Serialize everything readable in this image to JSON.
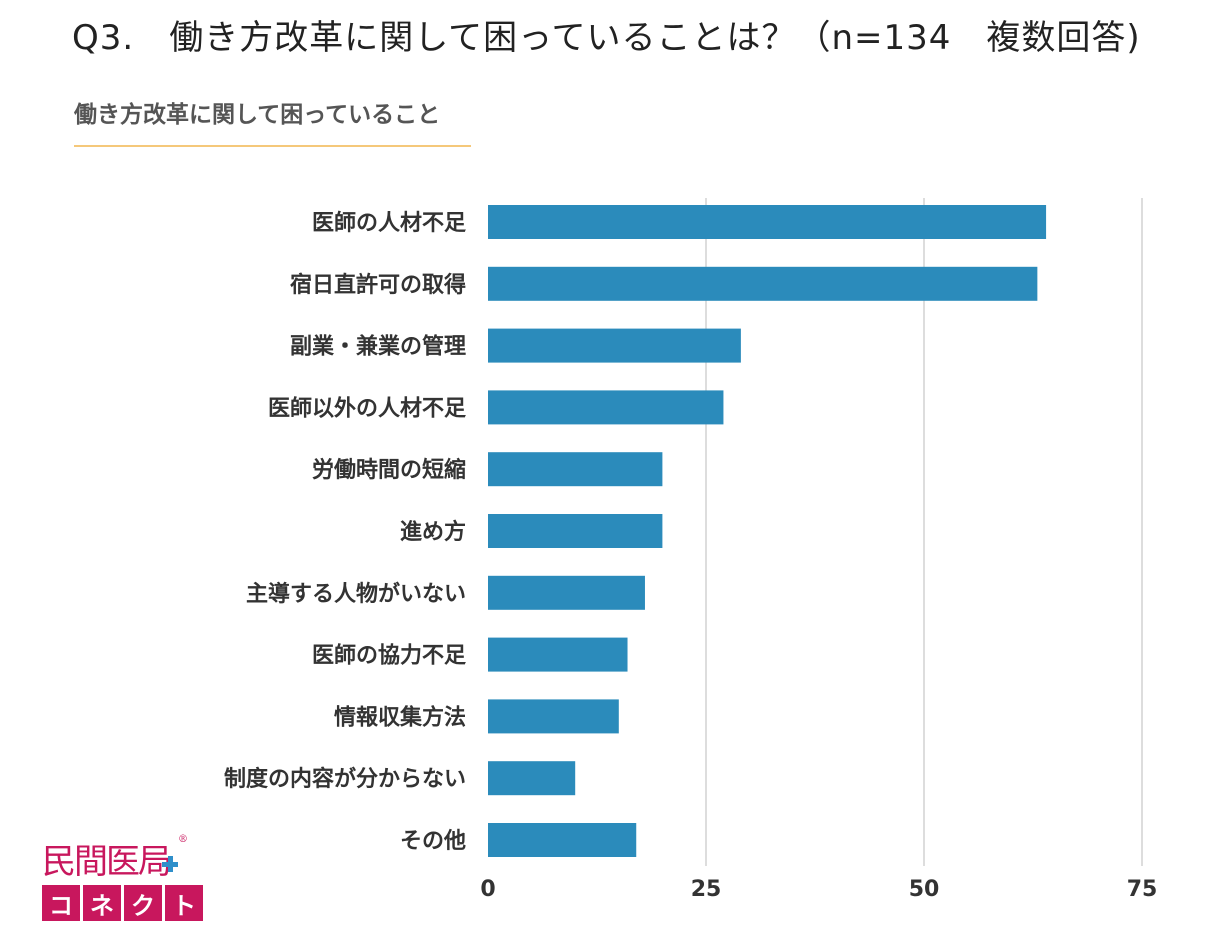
{
  "header": {
    "question": "Q3.　働き方改革に関して困っていることは？（n=134　複数回答)",
    "subtitle": "働き方改革に関して困っていること"
  },
  "logo": {
    "top": "民間医局",
    "mark": "®",
    "bottom": [
      "コ",
      "ネ",
      "ク",
      "ト"
    ]
  },
  "colors": {
    "bar": "#2b8bbb",
    "grid": "#dddddd",
    "accent_rule": "#f5c87a",
    "brand": "#c8175d",
    "brand_plus": "#2f8fca"
  },
  "chart_data": {
    "type": "bar",
    "orientation": "horizontal",
    "title": "働き方改革に関して困っていること",
    "categories": [
      "医師の人材不足",
      "宿日直許可の取得",
      "副業・兼業の管理",
      "医師以外の人材不足",
      "労働時間の短縮",
      "進め方",
      "主導する人物がいない",
      "医師の協力不足",
      "情報収集方法",
      "制度の内容が分からない",
      "その他"
    ],
    "values": [
      64,
      63,
      29,
      27,
      20,
      20,
      18,
      16,
      15,
      10,
      17
    ],
    "xlim": [
      0,
      75
    ],
    "xticks": [
      0,
      25,
      50,
      75
    ],
    "xlabel": "",
    "ylabel": "",
    "grid": true
  }
}
